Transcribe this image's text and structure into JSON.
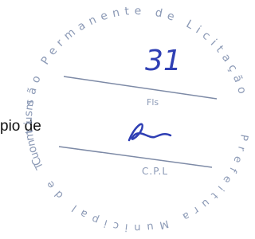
{
  "document_text": "pio de",
  "stamp": {
    "outer_top": "Comissão Permanente de Licitação",
    "outer_bottom": "Prefeitura Municipal de Tuntum",
    "page_number": "31",
    "page_label": "Fls",
    "signature_label": "C.P.L"
  }
}
